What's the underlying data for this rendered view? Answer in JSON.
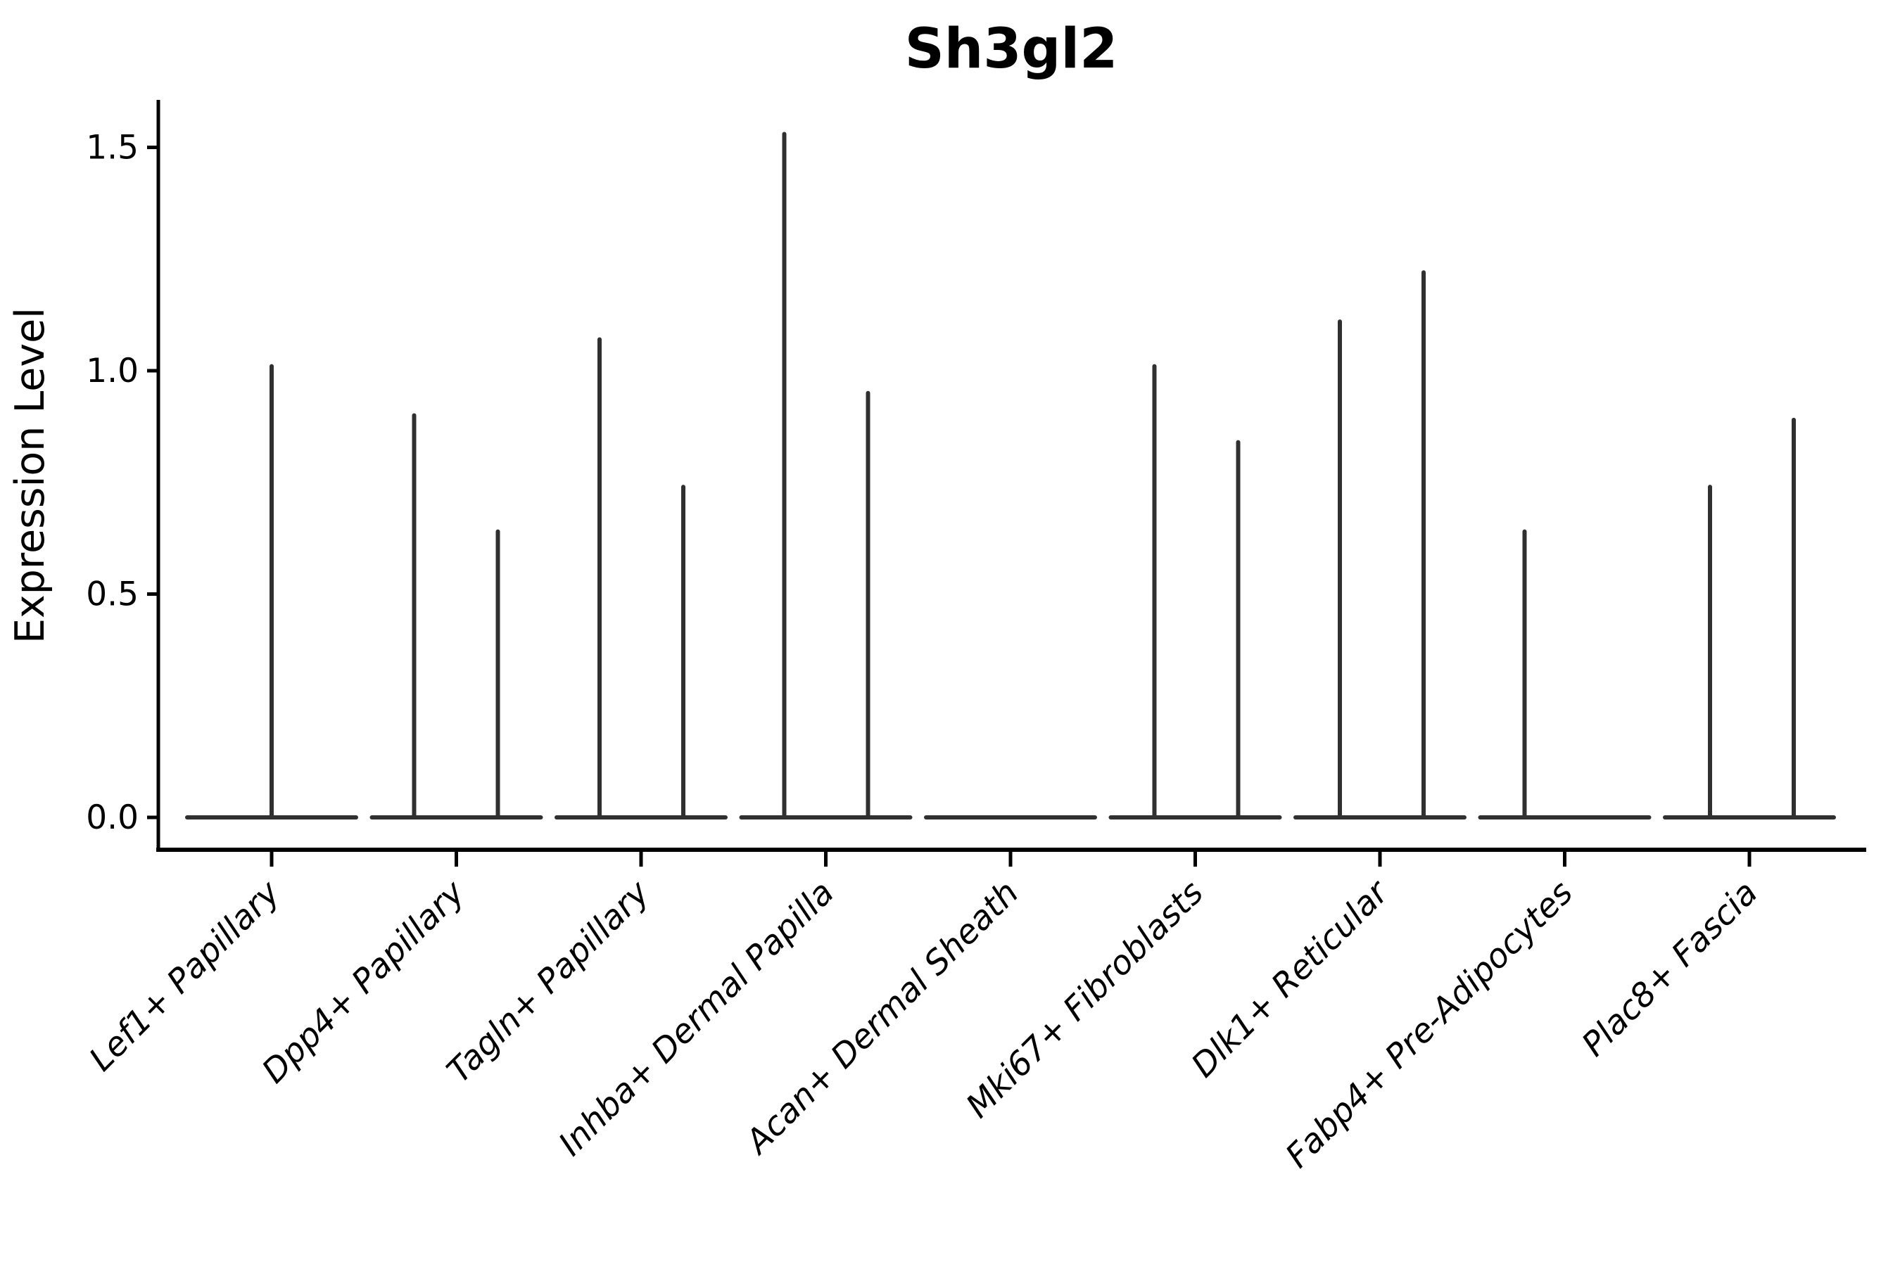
{
  "title": "Sh3gl2",
  "y_axis": {
    "label": "Expression Level",
    "tick_labels": [
      "0.0",
      "0.5",
      "1.0",
      "1.5"
    ],
    "tick_values": [
      0.0,
      0.5,
      1.0,
      1.5
    ]
  },
  "chart_data": {
    "type": "violin",
    "title": "Sh3gl2",
    "xlabel": "",
    "ylabel": "Expression Level",
    "ylim": [
      0,
      1.61
    ],
    "yticks": [
      0.0,
      0.5,
      1.0,
      1.5
    ],
    "grid": false,
    "legend": "none",
    "ink_color": "#000000",
    "violin_color": "#303030",
    "categories": [
      "Lef1+ Papillary",
      "Dpp4+ Papillary",
      "Tagln+ Papillary",
      "Inhba+ Dermal Papilla",
      "Acan+ Dermal Sheath",
      "Mki67+ Fibroblasts",
      "Dlk1+ Reticular",
      "Fabp4+ Pre-Adipocytes",
      "Plac8+ Fascia"
    ],
    "violins": [
      {
        "category": "Lef1+ Papillary",
        "base_at": 0.0,
        "spikes": [
          {
            "dx": 0,
            "max": 1.01
          }
        ]
      },
      {
        "category": "Dpp4+ Papillary",
        "base_at": 0.0,
        "spikes": [
          {
            "dx": -60,
            "max": 0.9
          },
          {
            "dx": 59,
            "max": 0.64
          }
        ]
      },
      {
        "category": "Tagln+ Papillary",
        "base_at": 0.0,
        "spikes": [
          {
            "dx": -59,
            "max": 1.07
          },
          {
            "dx": 60,
            "max": 0.74
          }
        ]
      },
      {
        "category": "Inhba+ Dermal Papilla",
        "base_at": 0.0,
        "spikes": [
          {
            "dx": -59,
            "max": 1.53
          },
          {
            "dx": 60,
            "max": 0.95
          }
        ]
      },
      {
        "category": "Acan+ Dermal Sheath",
        "base_at": 0.0,
        "spikes": []
      },
      {
        "category": "Mki67+ Fibroblasts",
        "base_at": 0.0,
        "spikes": [
          {
            "dx": -58,
            "max": 1.01
          },
          {
            "dx": 61,
            "max": 0.84
          }
        ]
      },
      {
        "category": "Dlk1+ Reticular",
        "base_at": 0.0,
        "spikes": [
          {
            "dx": -57,
            "max": 1.11
          },
          {
            "dx": 62,
            "max": 1.22
          }
        ]
      },
      {
        "category": "Fabp4+ Pre-Adipocytes",
        "base_at": 0.0,
        "spikes": [
          {
            "dx": -57,
            "max": 0.64
          }
        ]
      },
      {
        "category": "Plac8+ Fascia",
        "base_at": 0.0,
        "spikes": [
          {
            "dx": -56,
            "max": 0.74
          },
          {
            "dx": 63,
            "max": 0.89
          }
        ]
      }
    ]
  }
}
